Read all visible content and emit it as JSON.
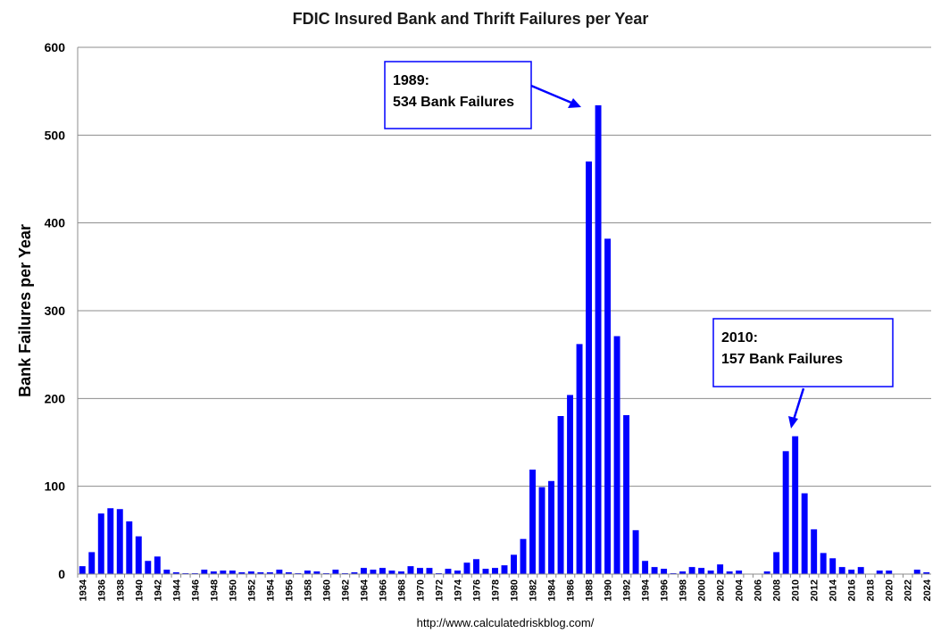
{
  "chart_data": {
    "type": "bar",
    "title": "FDIC Insured Bank and Thrift Failures per Year",
    "xlabel": "",
    "ylabel": "Bank Failures per Year",
    "ylim": [
      0,
      600
    ],
    "yticks": [
      0,
      100,
      200,
      300,
      400,
      500,
      600
    ],
    "grid": true,
    "bar_color": "#0000ff",
    "categories": [
      "1934",
      "1935",
      "1936",
      "1937",
      "1938",
      "1939",
      "1940",
      "1941",
      "1942",
      "1943",
      "1944",
      "1945",
      "1946",
      "1947",
      "1948",
      "1949",
      "1950",
      "1951",
      "1952",
      "1953",
      "1954",
      "1955",
      "1956",
      "1957",
      "1958",
      "1959",
      "1960",
      "1961",
      "1962",
      "1963",
      "1964",
      "1965",
      "1966",
      "1967",
      "1968",
      "1969",
      "1970",
      "1971",
      "1972",
      "1973",
      "1974",
      "1975",
      "1976",
      "1977",
      "1978",
      "1979",
      "1980",
      "1981",
      "1982",
      "1983",
      "1984",
      "1985",
      "1986",
      "1987",
      "1988",
      "1989",
      "1990",
      "1991",
      "1992",
      "1993",
      "1994",
      "1995",
      "1996",
      "1997",
      "1998",
      "1999",
      "2000",
      "2001",
      "2002",
      "2003",
      "2004",
      "2005",
      "2006",
      "2007",
      "2008",
      "2009",
      "2010",
      "2011",
      "2012",
      "2013",
      "2014",
      "2015",
      "2016",
      "2017",
      "2018",
      "2019",
      "2020",
      "2021",
      "2022",
      "2023",
      "2024"
    ],
    "values": [
      9,
      25,
      69,
      75,
      74,
      60,
      43,
      15,
      20,
      5,
      2,
      1,
      1,
      5,
      3,
      4,
      4,
      2,
      3,
      2,
      2,
      5,
      2,
      1,
      4,
      3,
      1,
      5,
      1,
      2,
      7,
      5,
      7,
      4,
      3,
      9,
      7,
      7,
      1,
      6,
      4,
      13,
      17,
      6,
      7,
      10,
      22,
      40,
      119,
      99,
      106,
      180,
      204,
      262,
      470,
      534,
      382,
      271,
      181,
      50,
      15,
      8,
      6,
      1,
      3,
      8,
      7,
      4,
      11,
      3,
      4,
      0,
      0,
      3,
      25,
      140,
      157,
      92,
      51,
      24,
      18,
      8,
      5,
      8,
      0,
      4,
      4,
      0,
      0,
      5,
      2
    ],
    "xtick_labels": [
      "1934",
      "1936",
      "1938",
      "1940",
      "1942",
      "1944",
      "1946",
      "1948",
      "1950",
      "1952",
      "1954",
      "1956",
      "1958",
      "1960",
      "1962",
      "1964",
      "1966",
      "1968",
      "1970",
      "1972",
      "1974",
      "1976",
      "1978",
      "1980",
      "1982",
      "1984",
      "1986",
      "1988",
      "1990",
      "1992",
      "1994",
      "1996",
      "1998",
      "2000",
      "2002",
      "2004",
      "2006",
      "2008",
      "2010",
      "2012",
      "2014",
      "2016",
      "2018",
      "2020",
      "2022",
      "2024"
    ],
    "annotations": [
      {
        "year": "1989",
        "line1": "1989:",
        "line2": "534 Bank Failures"
      },
      {
        "year": "2010",
        "line1": "2010:",
        "line2": "157 Bank Failures"
      }
    ]
  },
  "source": "http://www.calculatedriskblog.com/"
}
